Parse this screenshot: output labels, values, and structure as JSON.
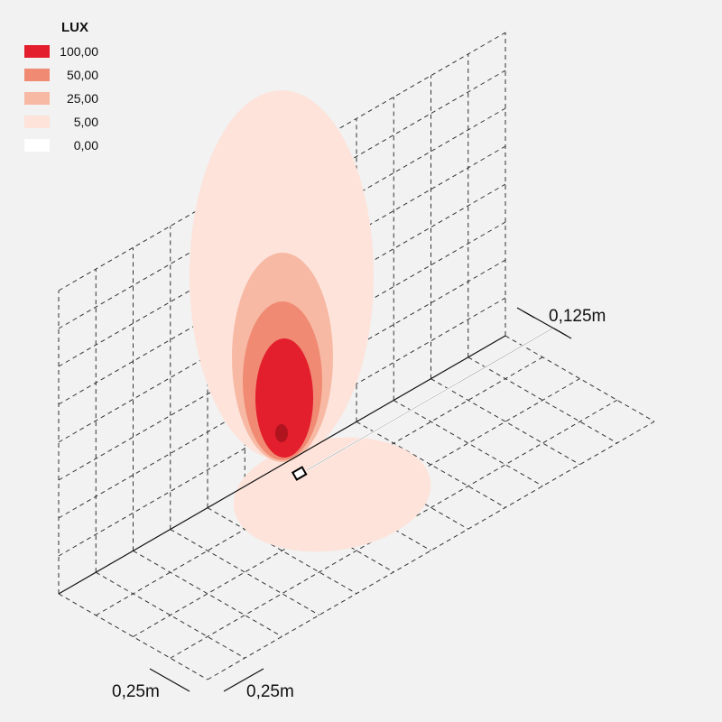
{
  "legend": {
    "title": "LUX",
    "items": [
      {
        "label": "100,00",
        "color": "#e31e2d"
      },
      {
        "label": "50,00",
        "color": "#f08a73"
      },
      {
        "label": "25,00",
        "color": "#f7b9a4"
      },
      {
        "label": "5,00",
        "color": "#fde3da"
      },
      {
        "label": "0,00",
        "color": "#ffffff"
      }
    ]
  },
  "dimensions": {
    "height_offset": "0,125m",
    "grid_x": "0,25m",
    "grid_y": "0,25m"
  }
}
